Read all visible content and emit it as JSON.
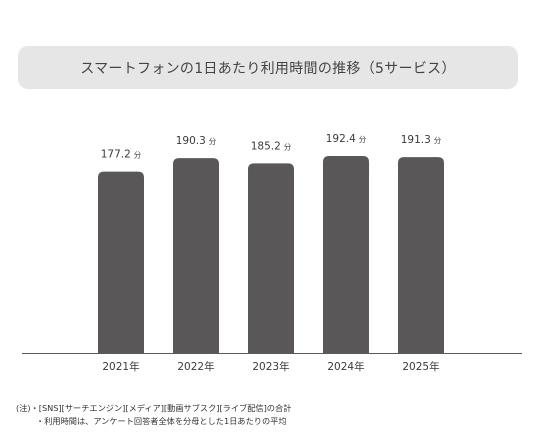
{
  "chart_data": {
    "type": "bar",
    "title": "スマートフォンの1日あたり利用時間の推移（5サービス）",
    "categories": [
      "2021年",
      "2022年",
      "2023年",
      "2024年",
      "2025年"
    ],
    "values": [
      177.2,
      190.3,
      185.2,
      192.4,
      191.3
    ],
    "value_labels": [
      "177.2",
      "190.3",
      "185.2",
      "192.4",
      "191.3"
    ],
    "unit": "分",
    "xlabel": "",
    "ylabel": "",
    "ylim": [
      0,
      200
    ],
    "grid": false,
    "bar_color": "#595757"
  },
  "notes": {
    "line1": "(注)・[SNS][サーチエンジン][メディア][動画サブスク][ライブ配信]の合計",
    "line2": "・利用時間は、アンケート回答者全体を分母とした1日あたりの平均"
  }
}
